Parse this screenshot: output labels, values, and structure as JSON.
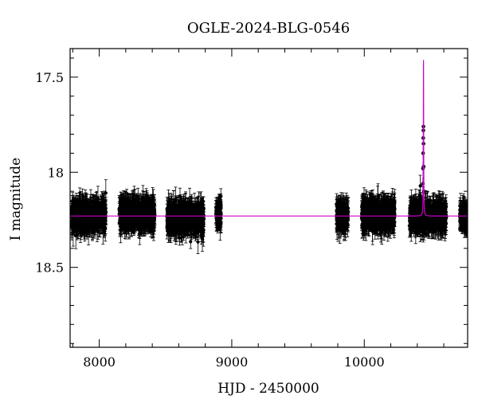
{
  "chart_data": {
    "type": "scatter",
    "title": "OGLE-2024-BLG-0546",
    "xlabel": "HJD - 2450000",
    "ylabel": "I magnitude",
    "xlim": [
      7780,
      10780
    ],
    "ylim": [
      17.35,
      18.92
    ],
    "y_inverted": true,
    "grid": false,
    "x_ticks_major": [
      8000,
      9000,
      10000
    ],
    "x_tick_labels": [
      "8000",
      "9000",
      "10000"
    ],
    "y_ticks_major": [
      17.5,
      18,
      18.5
    ],
    "y_tick_labels": [
      "17.5",
      "18",
      "18.5"
    ],
    "x_minor_step": 200,
    "y_minor_step": 0.1,
    "baseline_magnitude": 18.23,
    "typical_errorbar": 0.06,
    "observation_seasons": [
      {
        "start": 7790,
        "end": 8050,
        "mean_mag": 18.23,
        "scatter": 0.06
      },
      {
        "start": 8150,
        "end": 8420,
        "mean_mag": 18.22,
        "scatter": 0.06
      },
      {
        "start": 8510,
        "end": 8790,
        "mean_mag": 18.24,
        "scatter": 0.06
      },
      {
        "start": 8880,
        "end": 8920,
        "mean_mag": 18.22,
        "scatter": 0.05
      },
      {
        "start": 9790,
        "end": 9880,
        "mean_mag": 18.23,
        "scatter": 0.05
      },
      {
        "start": 9980,
        "end": 10230,
        "mean_mag": 18.22,
        "scatter": 0.06
      },
      {
        "start": 10340,
        "end": 10620,
        "mean_mag": 18.23,
        "scatter": 0.06
      },
      {
        "start": 10720,
        "end": 10780,
        "mean_mag": 18.23,
        "scatter": 0.05
      }
    ],
    "event_points": [
      {
        "x": 10440,
        "y": 18.22
      },
      {
        "x": 10441,
        "y": 18.14
      },
      {
        "x": 10442,
        "y": 18.06
      },
      {
        "x": 10443,
        "y": 17.98
      },
      {
        "x": 10444,
        "y": 17.9
      },
      {
        "x": 10445,
        "y": 17.82
      },
      {
        "x": 10446,
        "y": 17.78
      },
      {
        "x": 10446.5,
        "y": 17.76
      },
      {
        "x": 10447,
        "y": 17.85
      },
      {
        "x": 10448,
        "y": 17.97
      },
      {
        "x": 10449,
        "y": 18.1
      }
    ],
    "model": {
      "name": "",
      "color": "#cc00cc",
      "t0": 10447,
      "peak_magnitude": 17.41,
      "baseline": 18.23,
      "width_days": 2.2
    },
    "marker_color": "#000000",
    "errorbar_color": "#000000",
    "frame_color": "#000000"
  }
}
